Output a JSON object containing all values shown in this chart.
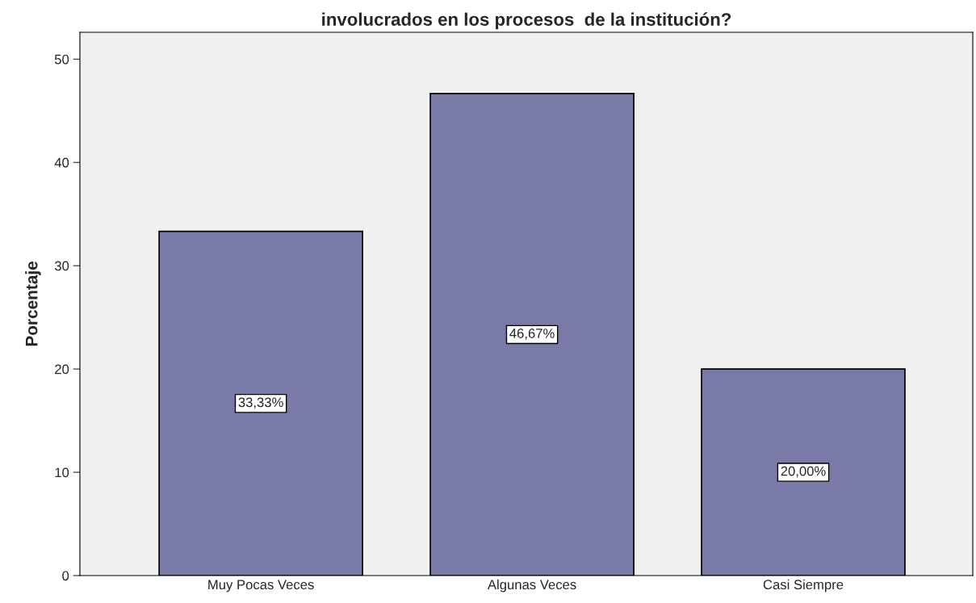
{
  "chart_data": {
    "type": "bar",
    "title": "involucrados en los procesos  de la institución?",
    "ylabel": "Porcentaje",
    "categories": [
      "Muy Pocas Veces",
      "Algunas Veces",
      "Casi Siempre"
    ],
    "values": [
      33.33,
      46.67,
      20.0
    ],
    "value_labels": [
      "33,33%",
      "46,67%",
      "20,00%"
    ],
    "color": "#7a7aa8",
    "ylim": [
      0,
      52.6
    ],
    "yticks": [
      0,
      10,
      20,
      30,
      40,
      50
    ],
    "grid": false,
    "legend": false
  }
}
